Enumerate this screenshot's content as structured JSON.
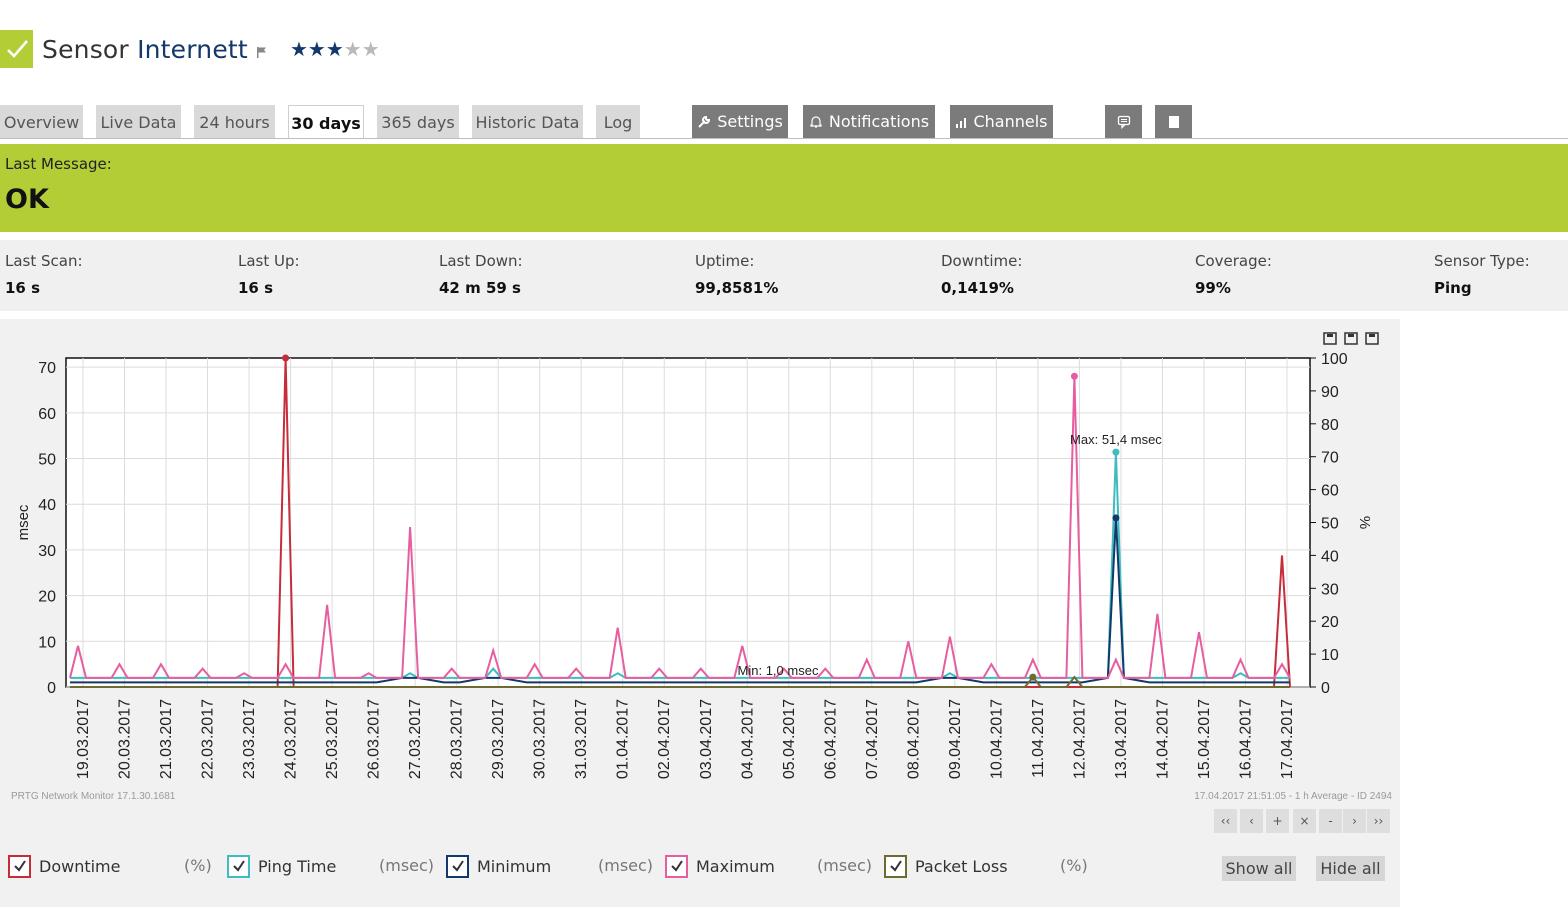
{
  "header": {
    "prefix": "Sensor",
    "name": "Internett",
    "stars_on": 3,
    "stars_total": 5
  },
  "tabs": [
    {
      "label": "Overview",
      "active": false
    },
    {
      "label": "Live Data",
      "active": false
    },
    {
      "label": "24 hours",
      "active": false
    },
    {
      "label": "30 days",
      "active": true
    },
    {
      "label": "365 days",
      "active": false
    },
    {
      "label": "Historic Data",
      "active": false
    },
    {
      "label": "Log",
      "active": false
    }
  ],
  "buttons": {
    "settings": "Settings",
    "notifications": "Notifications",
    "channels": "Channels"
  },
  "message": {
    "label": "Last Message:",
    "value": "OK"
  },
  "stats": [
    {
      "key": "Last Scan:",
      "value": "16 s"
    },
    {
      "key": "Last Up:",
      "value": "16 s"
    },
    {
      "key": "Last Down:",
      "value": "42 m 59 s"
    },
    {
      "key": "Uptime:",
      "value": "99,8581%"
    },
    {
      "key": "Downtime:",
      "value": "0,1419%"
    },
    {
      "key": "Coverage:",
      "value": "99%"
    },
    {
      "key": "Sensor Type:",
      "value": "Ping"
    }
  ],
  "chart_data": {
    "type": "line",
    "x": [
      "19.03.2017",
      "20.03.2017",
      "21.03.2017",
      "22.03.2017",
      "23.03.2017",
      "24.03.2017",
      "25.03.2017",
      "26.03.2017",
      "27.03.2017",
      "28.03.2017",
      "29.03.2017",
      "30.03.2017",
      "31.03.2017",
      "01.04.2017",
      "02.04.2017",
      "03.04.2017",
      "04.04.2017",
      "05.04.2017",
      "06.04.2017",
      "07.04.2017",
      "08.04.2017",
      "09.04.2017",
      "10.04.2017",
      "11.04.2017",
      "12.04.2017",
      "13.04.2017",
      "14.04.2017",
      "15.04.2017",
      "16.04.2017",
      "17.04.2017"
    ],
    "ylabel": "msec",
    "y2label": "%",
    "ylim": [
      0,
      72
    ],
    "y2lim": [
      0,
      100
    ],
    "yticks": [
      0,
      10,
      20,
      30,
      40,
      50,
      60,
      70
    ],
    "y2ticks": [
      0,
      10,
      20,
      30,
      40,
      50,
      60,
      70,
      80,
      90,
      100
    ],
    "annotations": [
      "Max: 51,4 msec",
      "Min: 1,0 msec"
    ],
    "series": [
      {
        "name": "Downtime",
        "unit": "(%)",
        "color": "#c62d3a",
        "axis": "right",
        "values": [
          0,
          0,
          0,
          0,
          0,
          100,
          0,
          0,
          0,
          0,
          0,
          0,
          0,
          0,
          0,
          0,
          0,
          0,
          0,
          0,
          0,
          0,
          0,
          0,
          0,
          0,
          0,
          0,
          0,
          40
        ]
      },
      {
        "name": "Ping Time",
        "unit": "(msec)",
        "color": "#3fbcc0",
        "axis": "left",
        "values": [
          2,
          2,
          2,
          2,
          2,
          2,
          2,
          2,
          3,
          2,
          4,
          2,
          2,
          3,
          2,
          2,
          2,
          2,
          2,
          2,
          2,
          3,
          2,
          2,
          2,
          51.4,
          2,
          2,
          3,
          2
        ]
      },
      {
        "name": "Minimum",
        "unit": "(msec)",
        "color": "#13386a",
        "axis": "left",
        "values": [
          1,
          1,
          1,
          1,
          1,
          1,
          1,
          1,
          2,
          1,
          2,
          1,
          1,
          1,
          1,
          1,
          1,
          1,
          1,
          1,
          1,
          2,
          1,
          1,
          1,
          37,
          1,
          1,
          1,
          1
        ]
      },
      {
        "name": "Maximum",
        "unit": "(msec)",
        "color": "#e75ea0",
        "axis": "left",
        "values": [
          9,
          5,
          5,
          4,
          3,
          5,
          18,
          3,
          35,
          4,
          8,
          5,
          4,
          13,
          4,
          4,
          9,
          4,
          4,
          6,
          10,
          11,
          5,
          6,
          68,
          6,
          16,
          12,
          6,
          5
        ]
      },
      {
        "name": "Packet Loss",
        "unit": "(%)",
        "color": "#6e6a32",
        "axis": "right",
        "values": [
          0,
          0,
          0,
          0,
          0,
          0,
          0,
          0,
          0,
          0,
          0,
          0,
          0,
          0,
          0,
          0,
          0,
          0,
          0,
          0,
          0,
          0,
          0,
          3,
          3,
          0,
          0,
          0,
          0,
          0
        ]
      }
    ]
  },
  "footer": {
    "left": "PRTG Network Monitor 17.1.30.1681",
    "right": "17.04.2017 21:51:05 - 1 h Average - ID 2494"
  },
  "nav": [
    "‹‹",
    "‹",
    "+",
    "×",
    "-",
    "›",
    "››"
  ],
  "show_all": "Show all",
  "hide_all": "Hide all"
}
